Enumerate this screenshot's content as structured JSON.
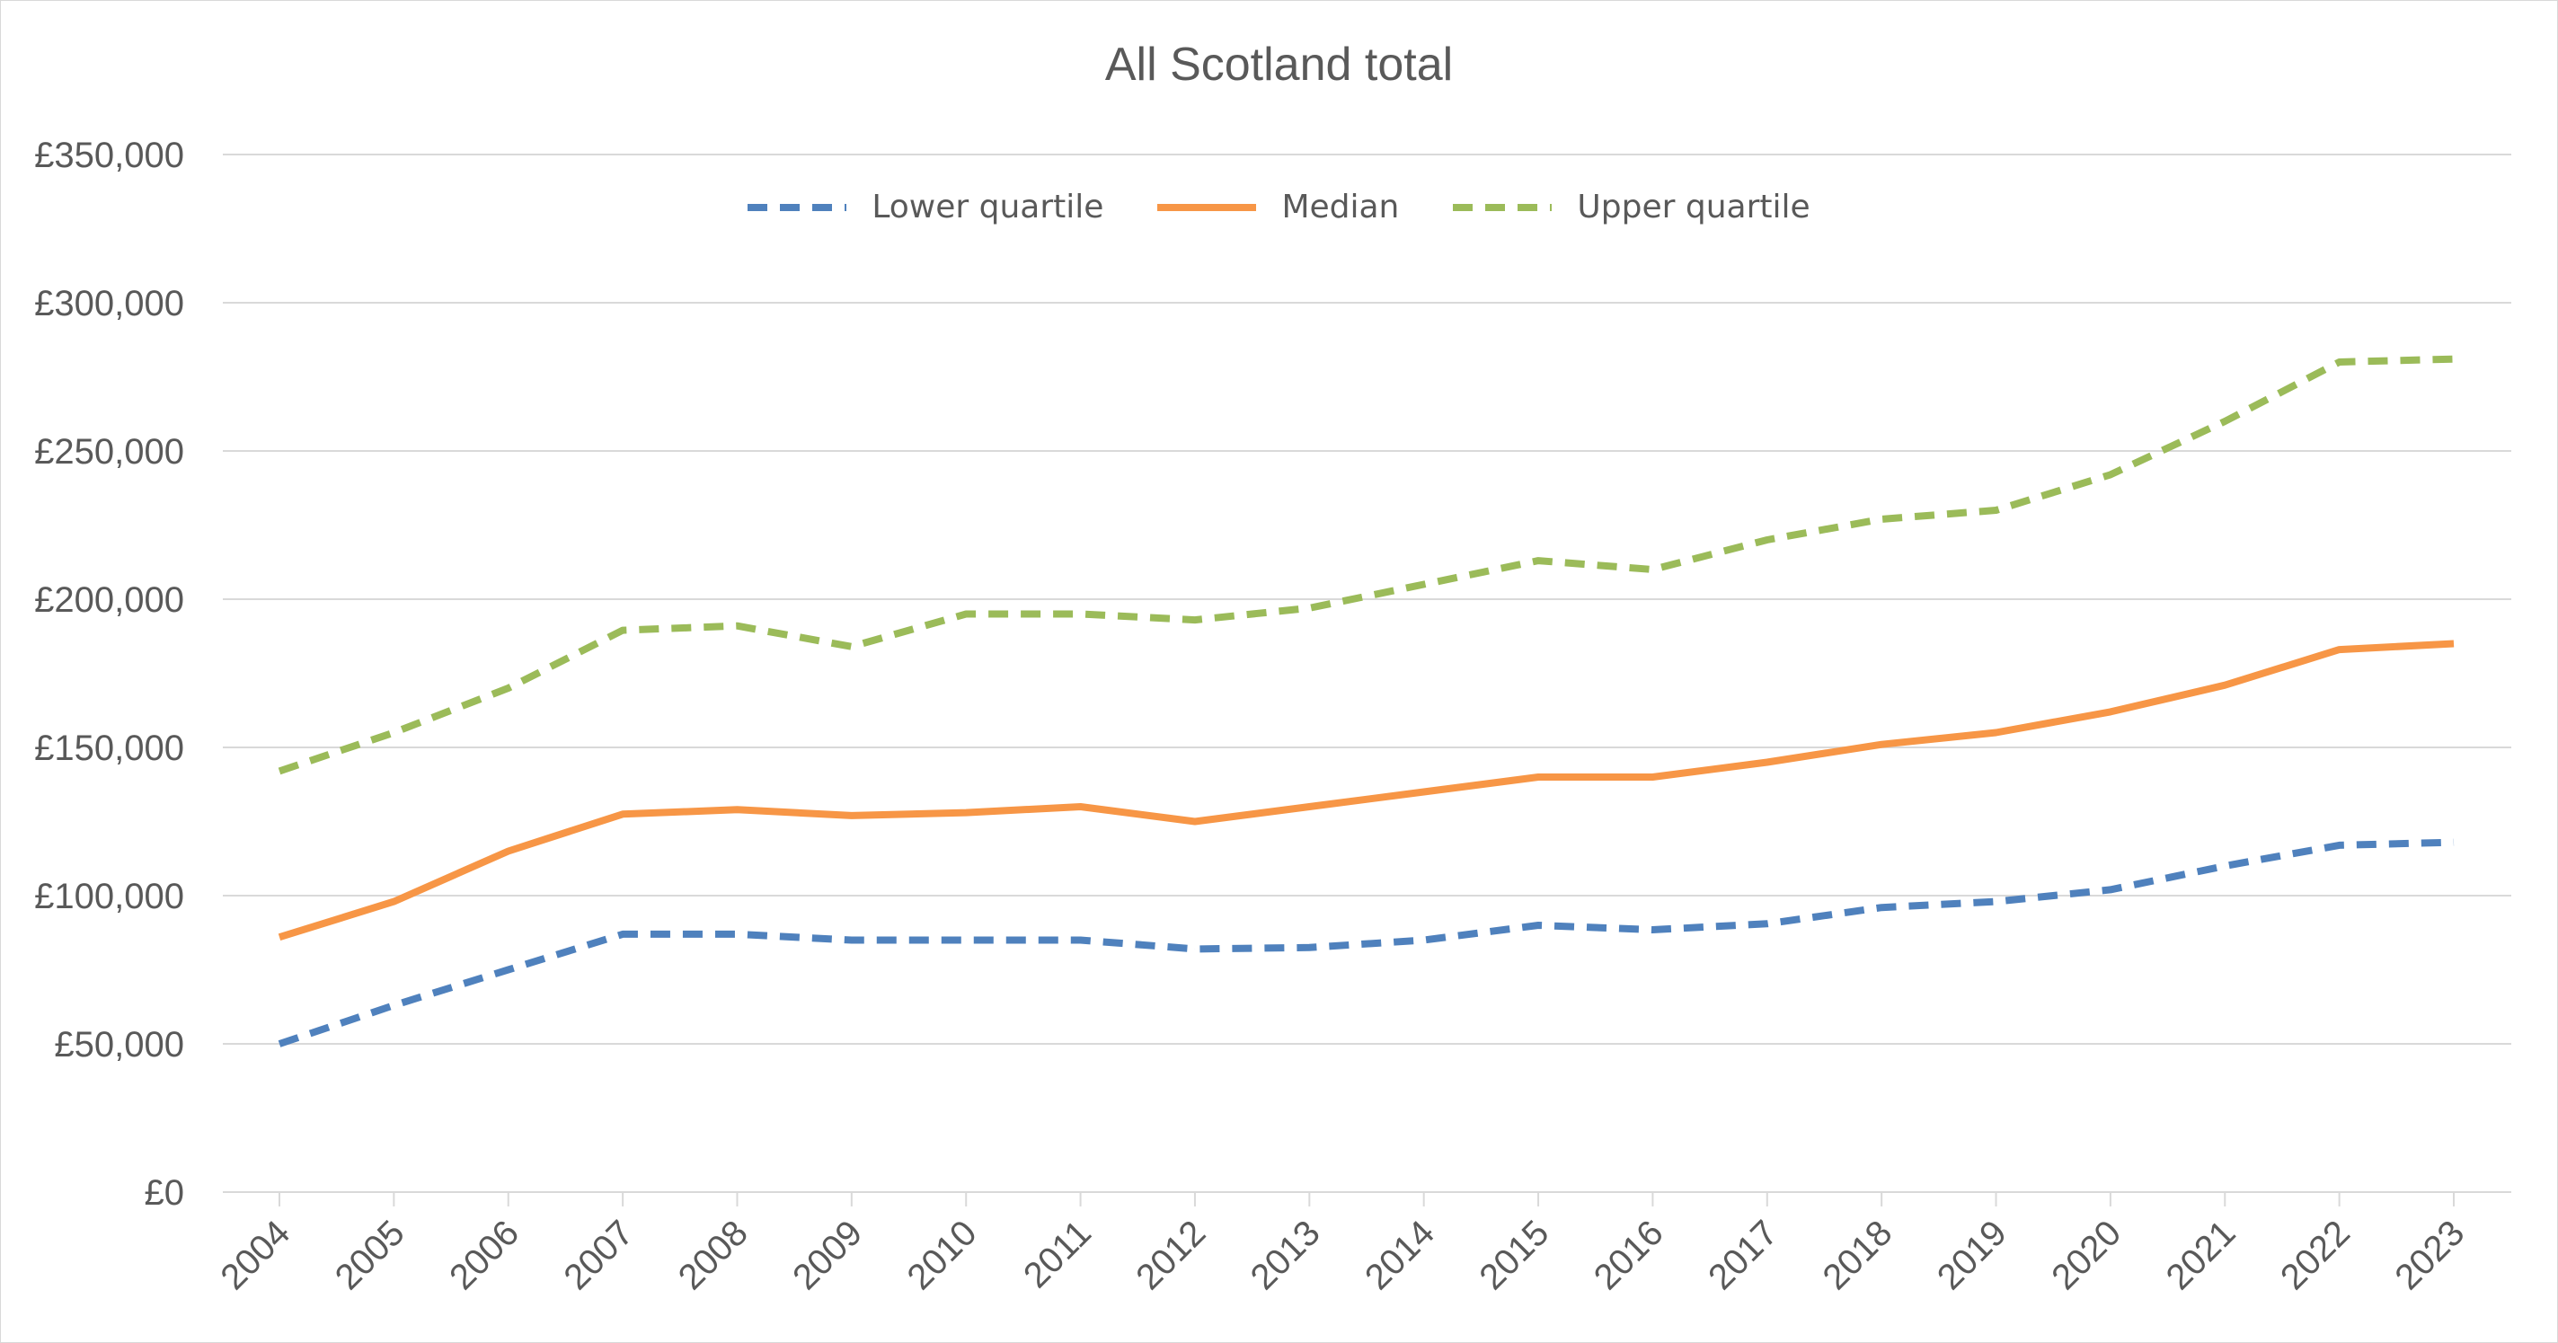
{
  "chart_data": {
    "type": "line",
    "title": "All Scotland total",
    "xlabel": "",
    "ylabel": "",
    "categories": [
      "2004",
      "2005",
      "2006",
      "2007",
      "2008",
      "2009",
      "2010",
      "2011",
      "2012",
      "2013",
      "2014",
      "2015",
      "2016",
      "2017",
      "2018",
      "2019",
      "2020",
      "2021",
      "2022",
      "2023"
    ],
    "ylim": [
      0,
      350000
    ],
    "yticks": [
      0,
      50000,
      100000,
      150000,
      200000,
      250000,
      300000,
      350000
    ],
    "ytick_labels": [
      "£0",
      "£50,000",
      "£100,000",
      "£150,000",
      "£200,000",
      "£250,000",
      "£300,000",
      "£350,000"
    ],
    "grid": "horizontal",
    "legend_position": "top",
    "series": [
      {
        "name": "Lower quartile",
        "color": "#4f81bd",
        "dash": "dashed",
        "values": [
          50000,
          63000,
          75000,
          87000,
          87000,
          85000,
          85000,
          85000,
          82000,
          82500,
          85000,
          90000,
          88500,
          90500,
          96000,
          98000,
          102000,
          110000,
          117000,
          118000
        ]
      },
      {
        "name": "Median",
        "color": "#f79646",
        "dash": "solid",
        "values": [
          86000,
          98000,
          115000,
          127500,
          129000,
          127000,
          128000,
          130000,
          125000,
          130000,
          135000,
          140000,
          140000,
          145000,
          151000,
          155000,
          162000,
          171000,
          183000,
          185000
        ]
      },
      {
        "name": "Upper quartile",
        "color": "#9bbb59",
        "dash": "dashed",
        "values": [
          142000,
          155000,
          170000,
          189500,
          191000,
          184000,
          195000,
          195000,
          193000,
          197000,
          205000,
          213000,
          210000,
          220000,
          227000,
          230000,
          242000,
          260000,
          280000,
          281000
        ]
      }
    ]
  }
}
